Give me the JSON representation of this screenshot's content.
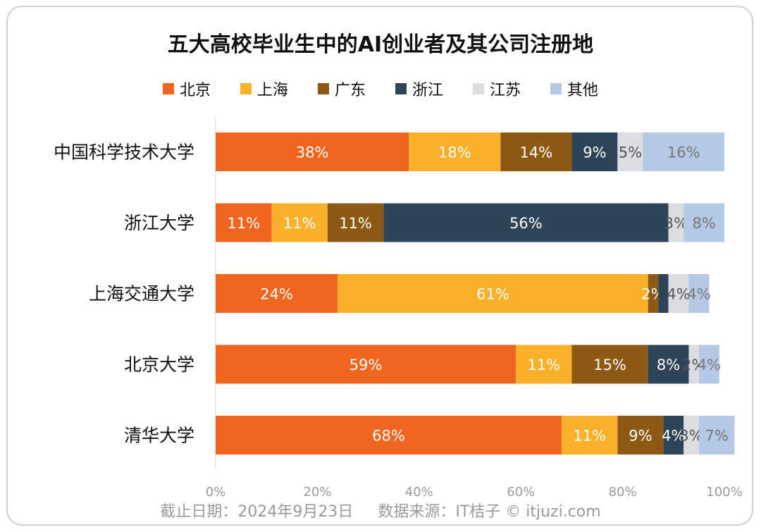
{
  "chart_data": {
    "type": "bar",
    "orientation": "horizontal",
    "stacked": true,
    "title": "五大高校毕业生中的AI创业者及其公司注册地",
    "categories": [
      "中国科学技术大学",
      "浙江大学",
      "上海交通大学",
      "北京大学",
      "清华大学"
    ],
    "series": [
      {
        "name": "北京",
        "color": "#f0661f",
        "values": [
          38,
          11,
          24,
          59,
          68
        ]
      },
      {
        "name": "上海",
        "color": "#fbb02a",
        "values": [
          18,
          11,
          61,
          11,
          11
        ]
      },
      {
        "name": "广东",
        "color": "#8c5a12",
        "values": [
          14,
          11,
          2,
          15,
          9
        ]
      },
      {
        "name": "浙江",
        "color": "#2e4458",
        "values": [
          9,
          56,
          2,
          8,
          4
        ]
      },
      {
        "name": "江苏",
        "color": "#dcdde1",
        "values": [
          5,
          3,
          4,
          2,
          3
        ]
      },
      {
        "name": "其他",
        "color": "#b5c8e6",
        "values": [
          16,
          8,
          4,
          4,
          7
        ]
      }
    ],
    "data_labels": [
      [
        "38%",
        "18%",
        "14%",
        "9%",
        "5%",
        "16%"
      ],
      [
        "11%",
        "11%",
        "11%",
        "56%",
        "3%",
        "8%"
      ],
      [
        "24%",
        "61%",
        "2%",
        "",
        "4%",
        "4%"
      ],
      [
        "59%",
        "11%",
        "15%",
        "8%",
        "2%",
        "4%"
      ],
      [
        "68%",
        "11%",
        "9%",
        "4%",
        "3%",
        "7%"
      ]
    ],
    "label_colors": [
      "#ffffff",
      "#ffffff",
      "#ffffff",
      "#ffffff",
      "#555555",
      "#777777"
    ],
    "xlim": [
      0,
      100
    ],
    "xticks": [
      "0%",
      "20%",
      "40%",
      "60%",
      "80%",
      "100%"
    ],
    "legend_position": "top",
    "grid": false
  },
  "footer": {
    "date": "截止日期：2024年9月23日",
    "source": "数据来源：IT桔子 © itjuzi.com"
  }
}
